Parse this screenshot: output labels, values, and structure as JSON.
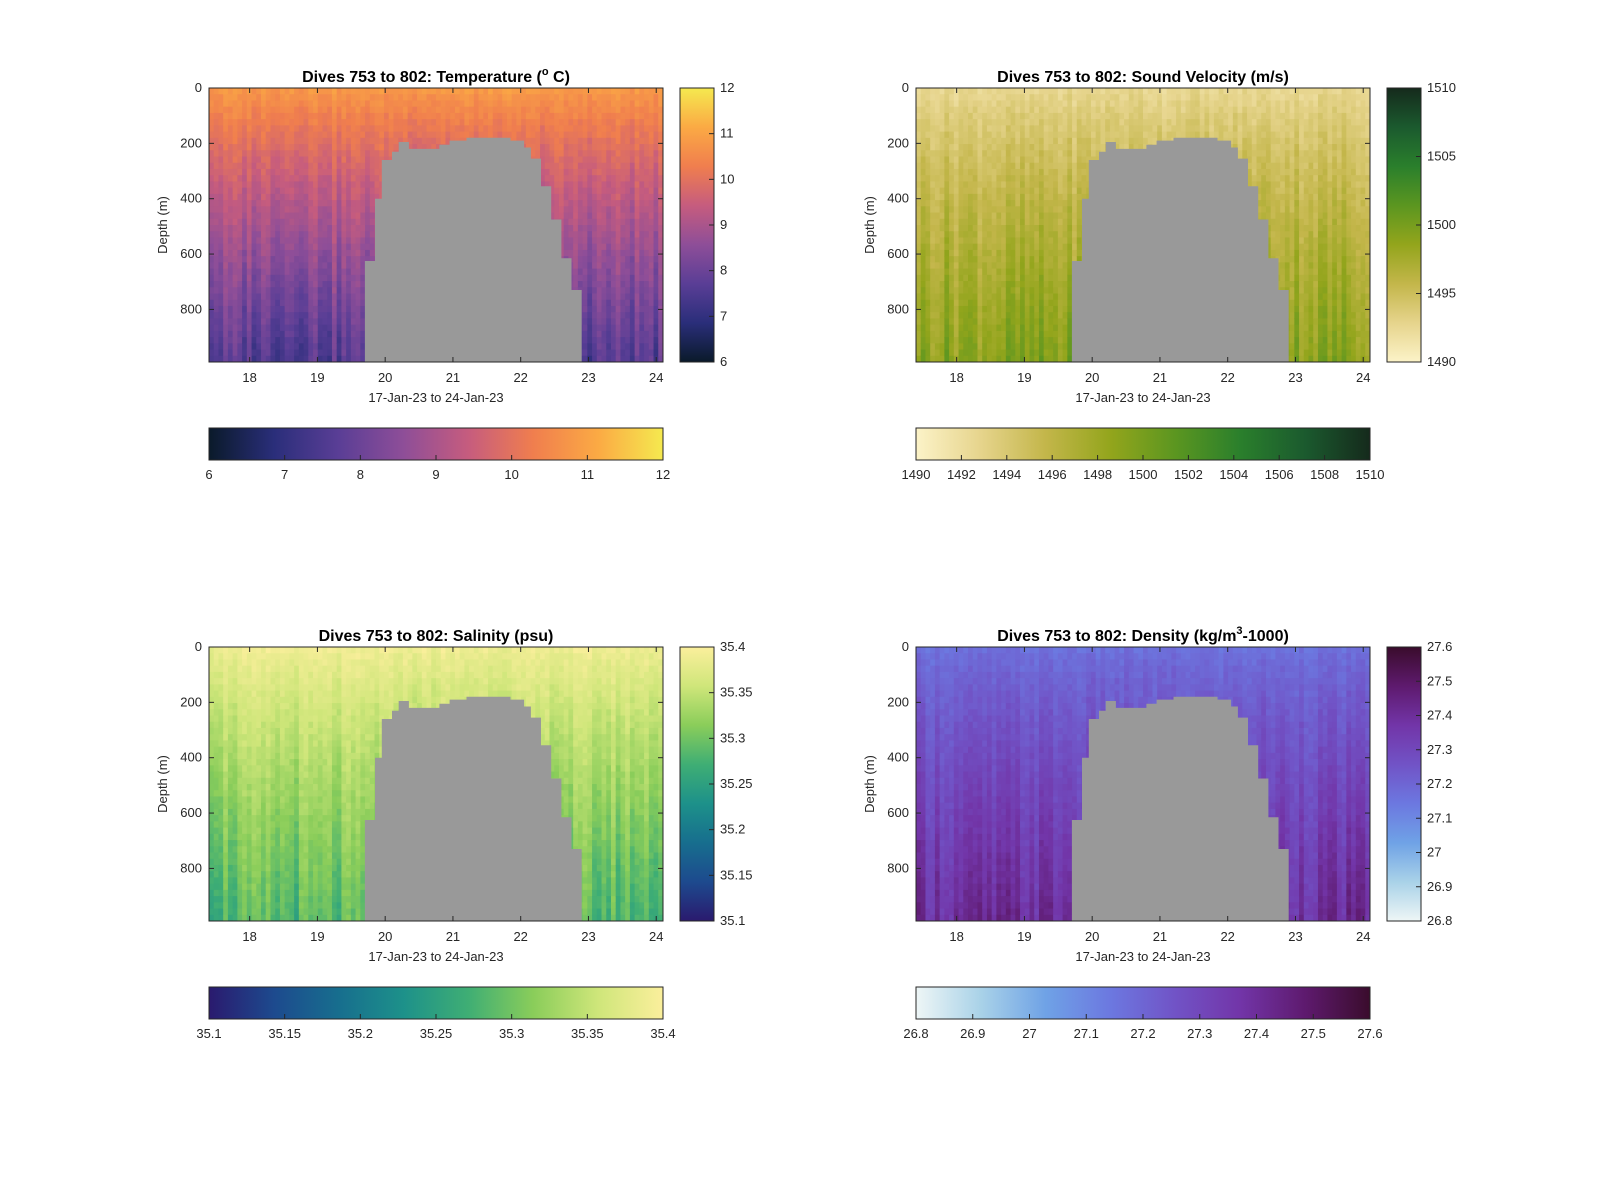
{
  "figure": {
    "charts": [
      {
        "title": "Dives 753 to 802: Temperature (° C)",
        "title_parts": [
          "Dives 753 to 802: Temperature (",
          "o",
          " C)"
        ],
        "title_script": "sup"
      },
      {
        "title": "Dives 753 to 802: Sound Velocity (m/s)",
        "title_parts": [
          "Dives 753 to 802: Sound Velocity (m/s)",
          "",
          ""
        ],
        "title_script": "none"
      },
      {
        "title": "Dives 753 to 802: Salinity (psu)",
        "title_parts": [
          "Dives 753 to 802: Salinity (psu)",
          "",
          ""
        ],
        "title_script": "none"
      },
      {
        "title": "Dives 753 to 802: Density (kg/m³-1000)",
        "title_parts": [
          "Dives 753 to 802: Density (kg/m",
          "3",
          "-1000)"
        ],
        "title_script": "sup"
      }
    ]
  },
  "chart_data": [
    {
      "type": "heatmap",
      "variable": "Temperature",
      "unit": "° C",
      "xlabel": "17-Jan-23 to 24-Jan-23",
      "ylabel": "Depth (m)",
      "xlim": [
        17.4,
        24.1
      ],
      "ylim": [
        0,
        990
      ],
      "y_reversed": true,
      "xticks": [
        18,
        19,
        20,
        21,
        22,
        23,
        24
      ],
      "xtick_labels": [
        "18",
        "19",
        "20",
        "21",
        "22",
        "23",
        "24"
      ],
      "yticks": [
        0,
        200,
        400,
        600,
        800
      ],
      "ytick_labels": [
        "0",
        "200",
        "400",
        "600",
        "800"
      ],
      "vertical_colorbar": {
        "range": [
          6,
          12
        ],
        "ticks": [
          "6",
          "7",
          "8",
          "9",
          "10",
          "11",
          "12"
        ]
      },
      "horizontal_colorbar": {
        "range": [
          6,
          12
        ],
        "ticks": [
          "6",
          "7",
          "8",
          "9",
          "10",
          "11",
          "12"
        ]
      },
      "colormap": [
        "#0a1a2a",
        "#2a2e7a",
        "#5a3e96",
        "#8e4e98",
        "#c65c7e",
        "#f07e4e",
        "#fbaa44",
        "#f5e94f"
      ],
      "surface_value": 10.9,
      "bottom_value": 7.6,
      "no_data_color": "#999999",
      "no_data_days": [
        19.7,
        22.9
      ],
      "no_data_top_depth_m": 175
    },
    {
      "type": "heatmap",
      "variable": "Sound Velocity",
      "unit": "m/s",
      "xlabel": "17-Jan-23 to 24-Jan-23",
      "ylabel": "Depth (m)",
      "xlim": [
        17.4,
        24.1
      ],
      "ylim": [
        0,
        990
      ],
      "y_reversed": true,
      "xticks": [
        18,
        19,
        20,
        21,
        22,
        23,
        24
      ],
      "xtick_labels": [
        "18",
        "19",
        "20",
        "21",
        "22",
        "23",
        "24"
      ],
      "yticks": [
        0,
        200,
        400,
        600,
        800
      ],
      "ytick_labels": [
        "0",
        "200",
        "400",
        "600",
        "800"
      ],
      "vertical_colorbar": {
        "range": [
          1490,
          1510
        ],
        "ticks": [
          "1490",
          "1495",
          "1500",
          "1505",
          "1510"
        ]
      },
      "horizontal_colorbar": {
        "range": [
          1490,
          1510
        ],
        "ticks": [
          "1490",
          "1492",
          "1494",
          "1496",
          "1498",
          "1500",
          "1502",
          "1504",
          "1506",
          "1508",
          "1510"
        ]
      },
      "colormap": [
        "#fcf3c8",
        "#e6d48c",
        "#c3b64a",
        "#93a51c",
        "#5b9620",
        "#2a7f2c",
        "#1b5a2e",
        "#152a1c"
      ],
      "surface_value": 1492.5,
      "bottom_value": 1499.3,
      "no_data_color": "#999999",
      "no_data_days": [
        19.7,
        22.9
      ],
      "no_data_top_depth_m": 175
    },
    {
      "type": "heatmap",
      "variable": "Salinity",
      "unit": "psu",
      "xlabel": "17-Jan-23 to 24-Jan-23",
      "ylabel": "Depth (m)",
      "xlim": [
        17.4,
        24.1
      ],
      "ylim": [
        0,
        990
      ],
      "y_reversed": true,
      "xticks": [
        18,
        19,
        20,
        21,
        22,
        23,
        24
      ],
      "xtick_labels": [
        "18",
        "19",
        "20",
        "21",
        "22",
        "23",
        "24"
      ],
      "yticks": [
        0,
        200,
        400,
        600,
        800
      ],
      "ytick_labels": [
        "0",
        "200",
        "400",
        "600",
        "800"
      ],
      "vertical_colorbar": {
        "range": [
          35.1,
          35.4
        ],
        "ticks": [
          "35.1",
          "35.15",
          "35.2",
          "35.25",
          "35.3",
          "35.35",
          "35.4"
        ]
      },
      "horizontal_colorbar": {
        "range": [
          35.1,
          35.4
        ],
        "ticks": [
          "35.1",
          "35.15",
          "35.2",
          "35.25",
          "35.3",
          "35.35",
          "35.4"
        ]
      },
      "colormap": [
        "#2a1a6e",
        "#1d4a8e",
        "#176e8e",
        "#1d918a",
        "#3fae74",
        "#8acd5a",
        "#cfe67a",
        "#fbef9c"
      ],
      "surface_value": 35.39,
      "bottom_value": 35.28,
      "no_data_color": "#999999",
      "no_data_days": [
        19.7,
        22.9
      ],
      "no_data_top_depth_m": 175
    },
    {
      "type": "heatmap",
      "variable": "Density",
      "unit": "kg/m3-1000",
      "xlabel": "17-Jan-23 to 24-Jan-23",
      "ylabel": "Depth (m)",
      "xlim": [
        17.4,
        24.1
      ],
      "ylim": [
        0,
        990
      ],
      "y_reversed": true,
      "xticks": [
        18,
        19,
        20,
        21,
        22,
        23,
        24
      ],
      "xtick_labels": [
        "18",
        "19",
        "20",
        "21",
        "22",
        "23",
        "24"
      ],
      "yticks": [
        0,
        200,
        400,
        600,
        800
      ],
      "ytick_labels": [
        "0",
        "200",
        "400",
        "600",
        "800"
      ],
      "vertical_colorbar": {
        "range": [
          26.8,
          27.6
        ],
        "ticks": [
          "26.8",
          "26.9",
          "27",
          "27.1",
          "27.2",
          "27.3",
          "27.4",
          "27.5",
          "27.6"
        ]
      },
      "horizontal_colorbar": {
        "range": [
          26.8,
          27.6
        ],
        "ticks": [
          "26.8",
          "26.9",
          "27",
          "27.1",
          "27.2",
          "27.3",
          "27.4",
          "27.5",
          "27.6"
        ]
      },
      "colormap": [
        "#eef6f6",
        "#a9d2e8",
        "#6fa2e6",
        "#6c78e0",
        "#7153c6",
        "#7235a8",
        "#5e1a6e",
        "#3a0c2c"
      ],
      "surface_value": 27.16,
      "bottom_value": 27.4,
      "no_data_color": "#999999",
      "no_data_days": [
        19.7,
        22.9
      ],
      "no_data_top_depth_m": 175
    }
  ]
}
